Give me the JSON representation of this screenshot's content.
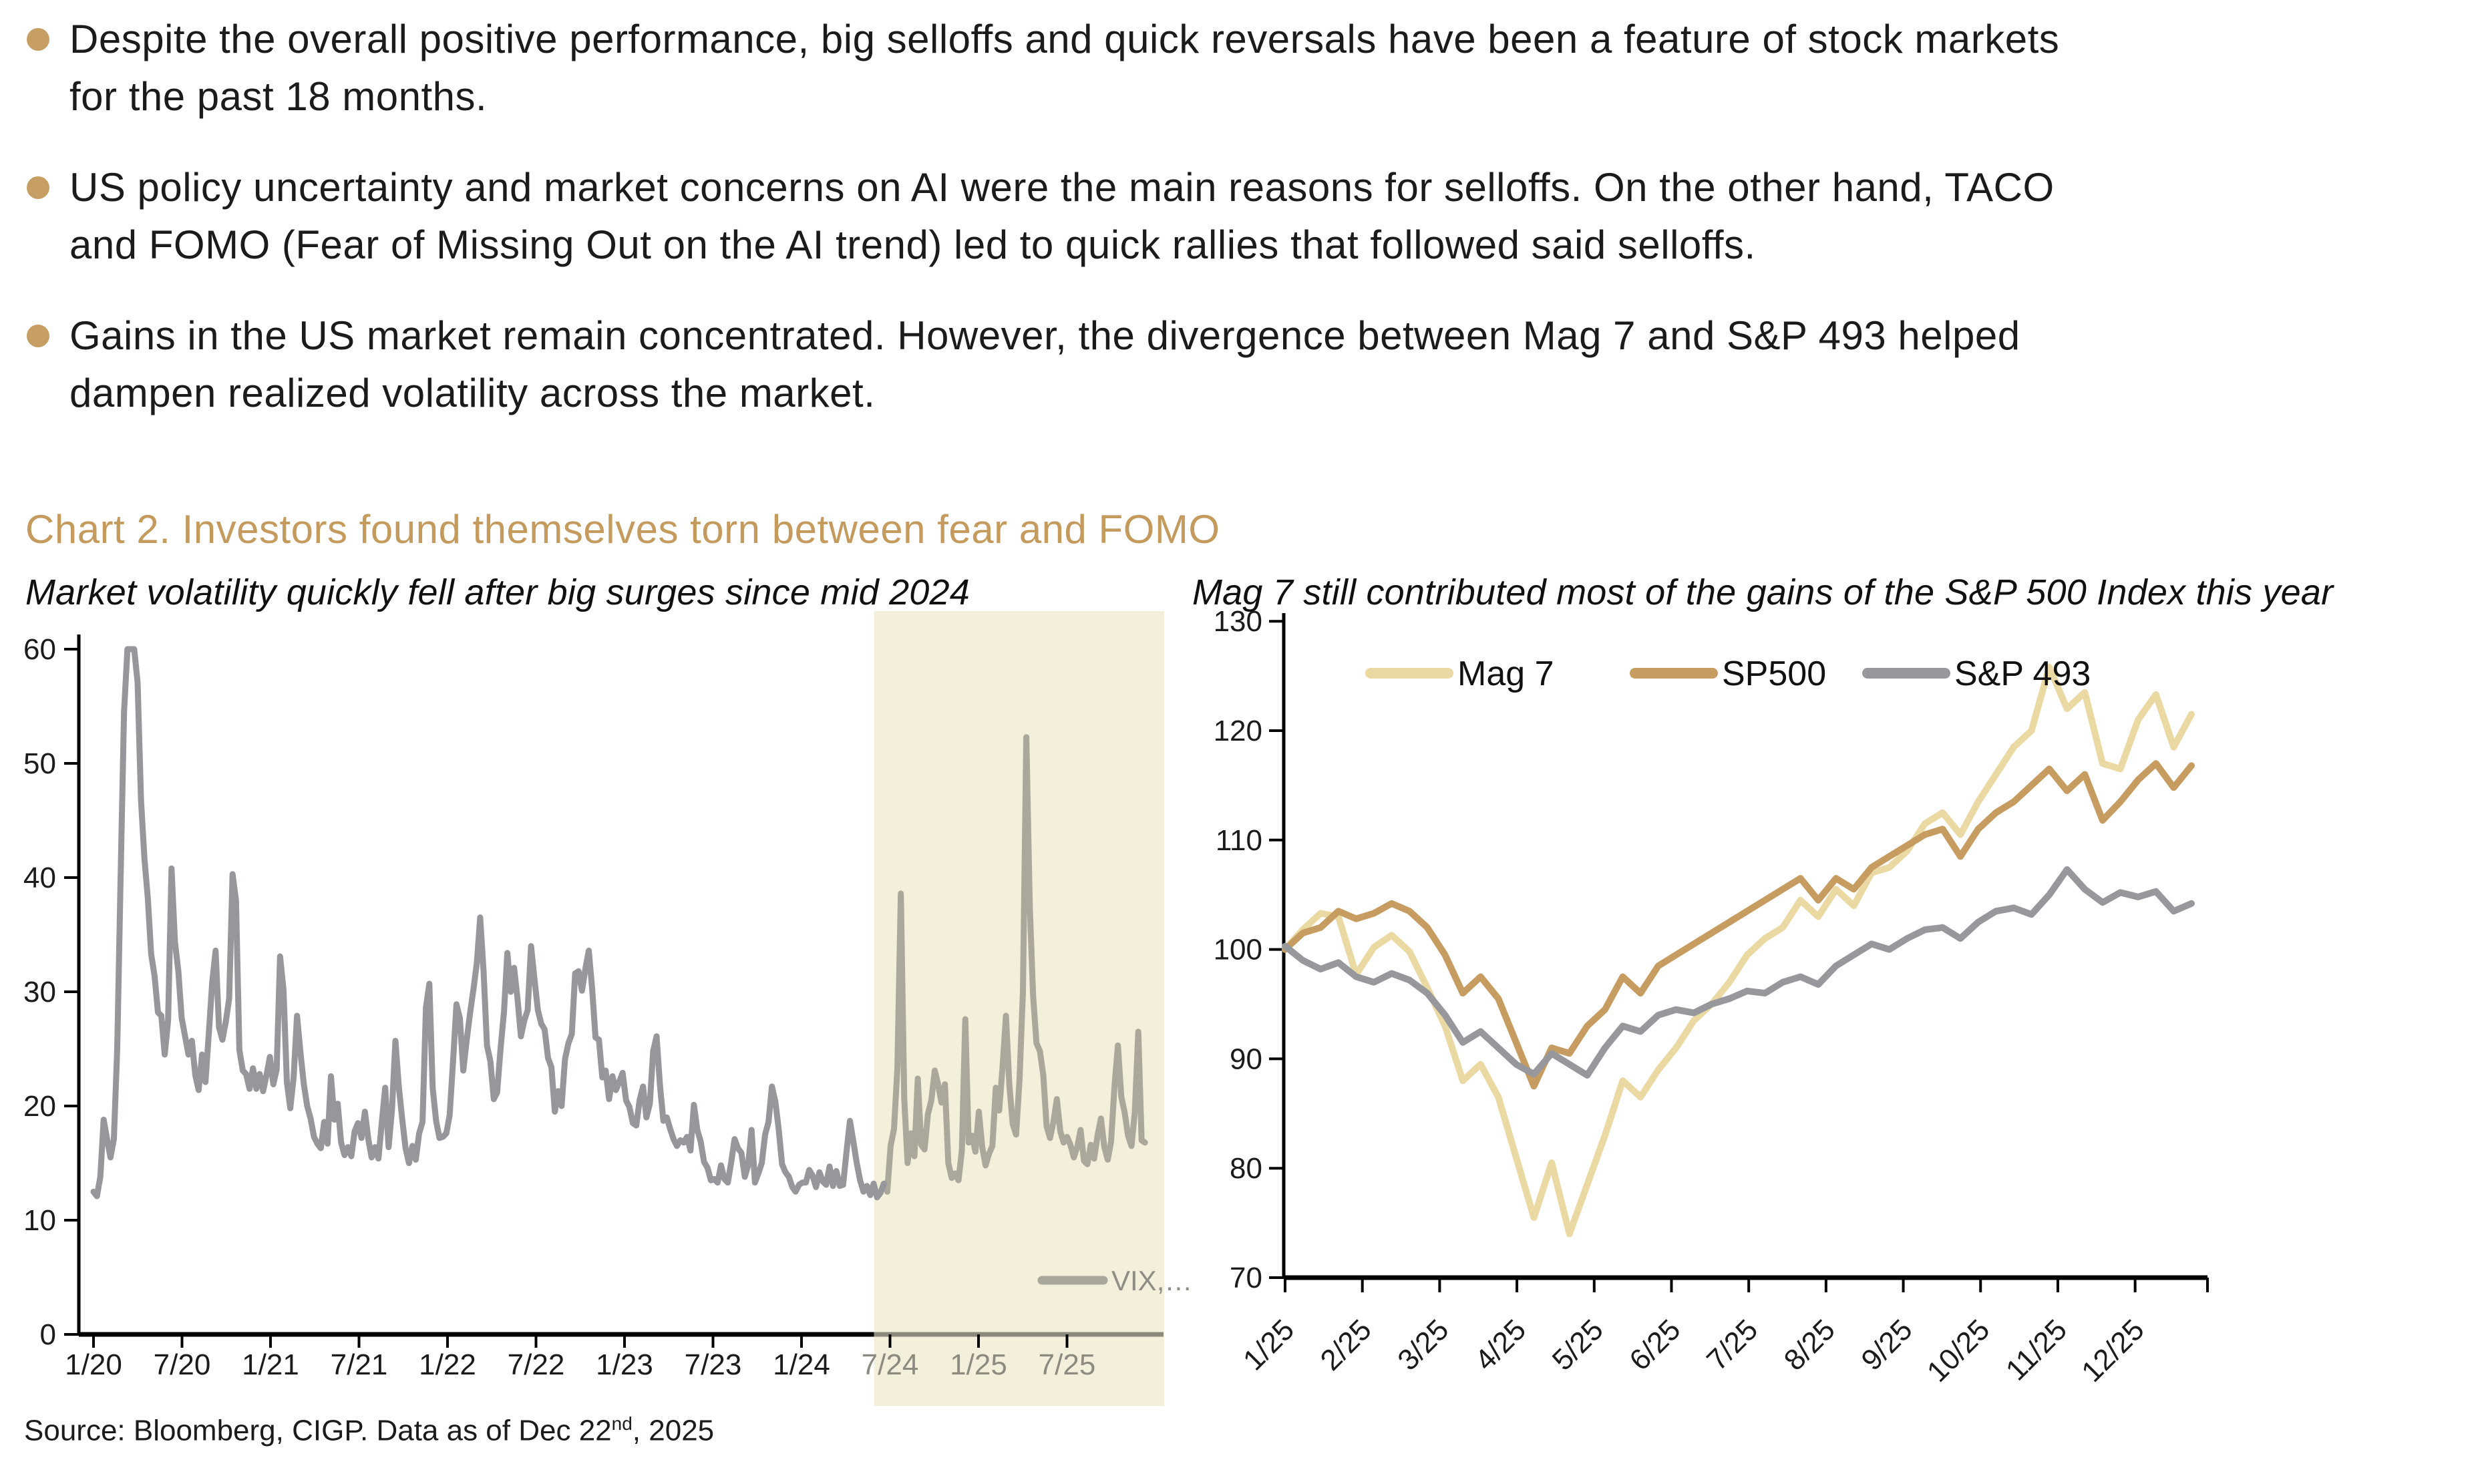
{
  "page": {
    "bullets": [
      {
        "lines": [
          "Despite the overall positive performance, big selloffs and quick reversals have been a feature of stock markets",
          "for the past 18 months."
        ]
      },
      {
        "lines": [
          "US policy uncertainty and market concerns on AI were the main reasons for selloffs. On the other hand, TACO",
          "and FOMO (Fear of Missing Out on the AI trend) led to quick rallies that followed said selloffs."
        ]
      },
      {
        "lines": [
          "Gains in the US market remain concentrated. However, the divergence between Mag 7 and S&P 493 helped",
          "dampen realized volatility across the market."
        ]
      }
    ],
    "chart_heading": "Chart 2. Investors found themselves torn between fear and FOMO",
    "source": {
      "pre": "Source: Bloomberg, CIGP. Data as of Dec 22",
      "sup": "nd",
      "post": ", 2025"
    },
    "accent_color": "#c49a5d",
    "bullet_color": "#c79e63"
  },
  "chart_data": [
    {
      "type": "line",
      "title": "Market volatility quickly fell after big surges since mid 2024",
      "ylim": [
        0,
        60
      ],
      "y_ticks": [
        0,
        10,
        20,
        30,
        40,
        50,
        60
      ],
      "x_ticks": [
        {
          "label": "1/20",
          "muted": false
        },
        {
          "label": "7/20",
          "muted": false
        },
        {
          "label": "1/21",
          "muted": false
        },
        {
          "label": "7/21",
          "muted": false
        },
        {
          "label": "1/22",
          "muted": false
        },
        {
          "label": "7/22",
          "muted": false
        },
        {
          "label": "1/23",
          "muted": false
        },
        {
          "label": "7/23",
          "muted": false
        },
        {
          "label": "1/24",
          "muted": false
        },
        {
          "label": "7/24",
          "muted": true
        },
        {
          "label": "1/25",
          "muted": true
        },
        {
          "label": "7/25",
          "muted": true
        }
      ],
      "x_start_year": 2020.0,
      "x_tick_step_years": 0.5,
      "grid": false,
      "legend_position": "inside-bottom-right",
      "legend": [
        {
          "label": "VIX,…",
          "color": "#a9a69b",
          "text_color": "#8f8d85"
        }
      ],
      "highlight": {
        "from_year": 2024.41,
        "to_year": 2026.05,
        "color": "#f3efdb"
      },
      "series": [
        {
          "name": "VIX",
          "color": "#95979b",
          "highlight_color": "#aba79a",
          "split_year": 2024.47,
          "start_year": 2020.0,
          "step_years": 0.019164,
          "values": [
            12.5,
            12.1,
            13.8,
            18.8,
            17.1,
            15.5,
            17.1,
            25.0,
            40.1,
            54.5,
            60,
            60,
            60,
            57.1,
            46.8,
            41.7,
            38.2,
            33.3,
            31.4,
            28.2,
            27.9,
            24.5,
            27.5,
            40.8,
            34.4,
            31.8,
            27.7,
            26.1,
            24.5,
            25.7,
            22.7,
            21.4,
            24.5,
            22.1,
            26.4,
            30.8,
            33.6,
            26.9,
            25.8,
            27.4,
            29.4,
            40.3,
            38.0,
            24.9,
            23.1,
            22.8,
            21.5,
            23.3,
            21.5,
            22.8,
            21.3,
            22.7,
            24.3,
            21.9,
            23.2,
            33.1,
            30.2,
            22.1,
            19.8,
            22.5,
            27.9,
            24.7,
            21.9,
            20.0,
            18.9,
            17.3,
            16.7,
            16.3,
            18.6,
            16.7,
            22.6,
            18.8,
            20.2,
            16.8,
            15.7,
            16.4,
            15.6,
            17.8,
            18.5,
            17.2,
            19.5,
            17.1,
            15.5,
            16.4,
            15.4,
            18.6,
            21.6,
            16.4,
            19.7,
            25.7,
            21.7,
            18.9,
            16.3,
            15.0,
            16.5,
            15.3,
            17.6,
            18.6,
            28.6,
            30.7,
            21.6,
            18.7,
            17.2,
            17.3,
            17.6,
            19.2,
            23.9,
            28.9,
            27.7,
            23.1,
            25.7,
            28.1,
            30.2,
            32.5,
            36.5,
            31.8,
            25.3,
            23.9,
            20.6,
            21.2,
            25.0,
            28.2,
            33.4,
            30.0,
            32.1,
            29.4,
            26.1,
            27.5,
            28.4,
            34.0,
            31.1,
            28.4,
            27.2,
            26.7,
            24.2,
            23.4,
            19.5,
            21.3,
            20.0,
            24.1,
            25.5,
            26.3,
            31.6,
            31.8,
            30.1,
            32.0,
            33.6,
            30.3,
            26.0,
            25.8,
            22.5,
            23.1,
            20.6,
            22.6,
            21.4,
            22.1,
            22.9,
            20.5,
            19.9,
            18.5,
            18.3,
            20.5,
            21.7,
            19.0,
            20.2,
            24.8,
            26.1,
            21.8,
            18.7,
            19.0,
            18.0,
            17.1,
            16.5,
            17.0,
            16.8,
            17.3,
            16.1,
            20.1,
            17.9,
            16.9,
            15.1,
            14.6,
            13.5,
            13.6,
            13.3,
            14.8,
            13.6,
            13.3,
            15.1,
            17.1,
            16.3,
            15.9,
            13.8,
            14.8,
            17.9,
            13.3,
            14.1,
            15.0,
            17.5,
            18.6,
            21.7,
            20.4,
            18.0,
            14.9,
            14.2,
            13.8,
            12.9,
            12.5,
            13.1,
            13.3,
            13.3,
            14.4,
            13.9,
            12.9,
            14.2,
            13.4,
            13.1,
            14.7,
            13.0,
            14.3,
            13.0,
            13.1,
            16.0,
            18.7,
            16.9,
            15.0,
            13.5,
            12.5,
            13.0,
            12.2,
            13.2,
            12.0,
            12.4,
            13.2,
            12.5,
            16.5,
            18.0,
            23.4,
            38.6,
            20.7,
            15.0,
            17.6,
            15.6,
            22.4,
            16.6,
            16.2,
            19.3,
            20.5,
            23.1,
            21.9,
            20.3,
            21.9,
            15.0,
            13.7,
            14.1,
            13.5,
            16.1,
            27.6,
            16.8,
            17.4,
            16.0,
            19.5,
            16.4,
            14.8,
            15.8,
            16.5,
            21.6,
            19.6,
            23.4,
            27.9,
            21.8,
            18.4,
            17.5,
            22.3,
            30.0,
            52.3,
            37.6,
            29.7,
            25.5,
            24.8,
            22.7,
            18.2,
            17.2,
            18.6,
            20.6,
            17.8,
            16.8,
            17.3,
            16.6,
            15.5,
            16.4,
            17.9,
            15.2,
            14.9,
            16.6,
            15.4,
            17.4,
            18.9,
            16.4,
            15.3,
            16.9,
            21.7,
            25.3,
            20.8,
            19.4,
            17.4,
            16.5,
            19.5,
            26.5,
            17.0,
            16.8
          ]
        }
      ]
    },
    {
      "type": "line",
      "title": "Mag 7 still contributed most of the gains of the S&P 500 Index this year",
      "ylim": [
        70,
        130
      ],
      "y_ticks": [
        70,
        80,
        90,
        100,
        110,
        120,
        130
      ],
      "x_ticks": [
        {
          "label": "1/25"
        },
        {
          "label": "2/25"
        },
        {
          "label": "3/25"
        },
        {
          "label": "4/25"
        },
        {
          "label": "5/25"
        },
        {
          "label": "6/25"
        },
        {
          "label": "7/25"
        },
        {
          "label": "8/25"
        },
        {
          "label": "9/25"
        },
        {
          "label": "10/25"
        },
        {
          "label": "11/25"
        },
        {
          "label": "12/25"
        }
      ],
      "x_start_year": 2025.0,
      "x_tick_step_years": 0.08333,
      "grid": false,
      "legend_position": "top",
      "legend": [
        {
          "label": "Mag 7",
          "color": "#ead9a3",
          "text_color": "#111111"
        },
        {
          "label": "SP500",
          "color": "#c69c61",
          "text_color": "#111111"
        },
        {
          "label": "S&P 493",
          "color": "#96989b",
          "text_color": "#111111"
        }
      ],
      "series": [
        {
          "name": "Mag 7",
          "color": "#ead9a3",
          "start_year": 2025.0,
          "step_years": 0.019164,
          "values": [
            100.0,
            101.8,
            103.3,
            103.0,
            97.7,
            100.2,
            101.3,
            99.8,
            96.5,
            93.0,
            88.0,
            89.5,
            86.5,
            81.0,
            75.5,
            80.5,
            74.0,
            78.5,
            83.0,
            88.0,
            86.5,
            89.0,
            91.0,
            93.5,
            95.0,
            97.0,
            99.5,
            101.0,
            102.0,
            104.5,
            103.0,
            105.5,
            104.0,
            107.0,
            107.5,
            109.0,
            111.5,
            112.5,
            110.5,
            113.5,
            116.0,
            118.5,
            120.0,
            125.8,
            122.0,
            123.5,
            117.0,
            116.5,
            121.0,
            123.3,
            118.5,
            121.5
          ]
        },
        {
          "name": "SP500",
          "color": "#c69c61",
          "start_year": 2025.0,
          "step_years": 0.019164,
          "values": [
            100.0,
            101.5,
            102.0,
            103.5,
            102.8,
            103.3,
            104.2,
            103.5,
            102.0,
            99.5,
            96.0,
            97.5,
            95.5,
            91.5,
            87.5,
            91.0,
            90.5,
            93.0,
            94.5,
            97.5,
            96.0,
            98.5,
            99.5,
            100.5,
            101.5,
            102.5,
            103.5,
            104.5,
            105.5,
            106.5,
            104.5,
            106.5,
            105.5,
            107.5,
            108.5,
            109.5,
            110.5,
            111.0,
            108.5,
            111.0,
            112.5,
            113.5,
            115.0,
            116.5,
            114.5,
            116.0,
            111.8,
            113.5,
            115.5,
            117.0,
            114.8,
            116.8
          ]
        },
        {
          "name": "S&P 493",
          "color": "#96989b",
          "start_year": 2025.0,
          "step_years": 0.019164,
          "values": [
            100.3,
            99.0,
            98.2,
            98.8,
            97.5,
            97.0,
            97.8,
            97.2,
            96.0,
            94.0,
            91.5,
            92.5,
            91.0,
            89.5,
            88.6,
            90.5,
            89.5,
            88.5,
            91.0,
            93.0,
            92.5,
            94.0,
            94.5,
            94.2,
            95.0,
            95.5,
            96.2,
            96.0,
            97.0,
            97.5,
            96.8,
            98.5,
            99.5,
            100.5,
            100.0,
            101.0,
            101.8,
            102.0,
            101.0,
            102.5,
            103.5,
            103.8,
            103.2,
            105.0,
            107.3,
            105.5,
            104.3,
            105.2,
            104.8,
            105.3,
            103.5,
            104.2
          ]
        }
      ]
    }
  ]
}
